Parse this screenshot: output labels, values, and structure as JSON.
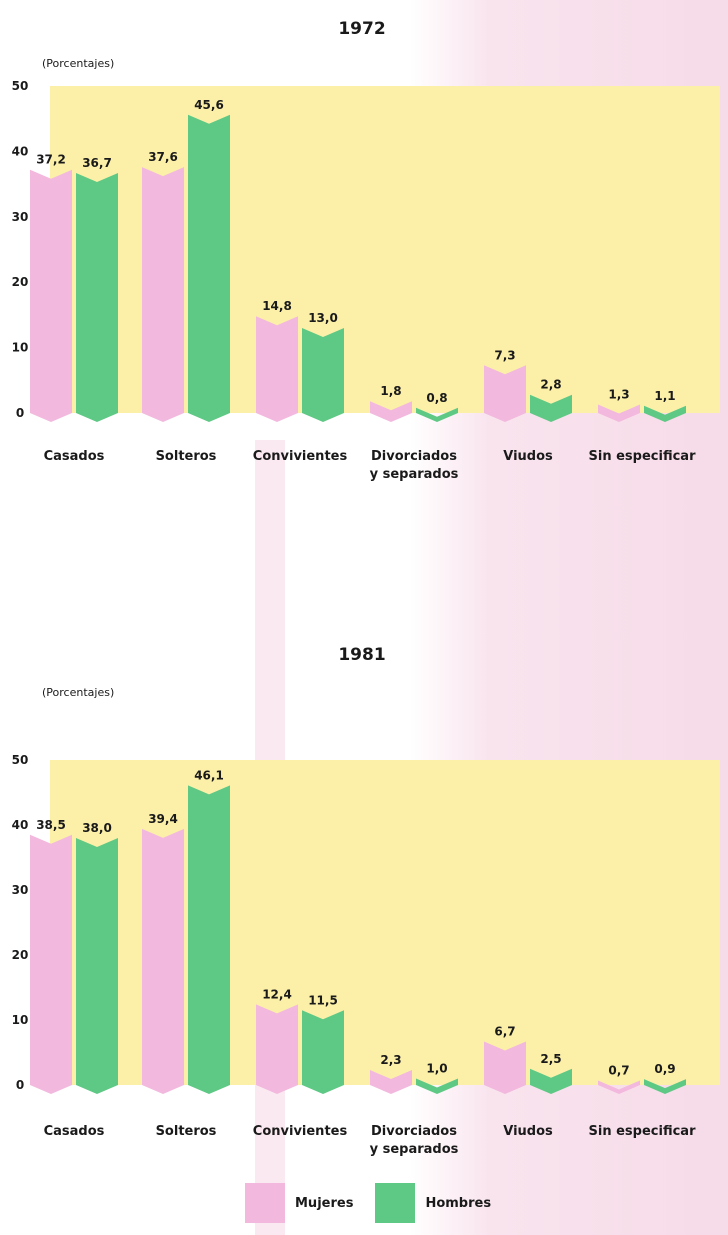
{
  "chart_data": [
    {
      "type": "bar",
      "title": "1972",
      "ylabel": "(Porcentajes)",
      "ylim": [
        0,
        50
      ],
      "yticks": [
        "0",
        "10",
        "20",
        "30",
        "40",
        "50"
      ],
      "categories": [
        "Casados",
        "Solteros",
        "Convivientes",
        "Divorciados|y separados",
        "Viudos",
        "Sin especificar"
      ],
      "series": [
        {
          "name": "Mujeres",
          "values": [
            37.2,
            37.6,
            14.8,
            1.8,
            7.3,
            1.3
          ],
          "labels": [
            "37,2",
            "37,6",
            "14,8",
            "1,8",
            "7,3",
            "1,3"
          ]
        },
        {
          "name": "Hombres",
          "values": [
            36.7,
            45.6,
            13.0,
            0.8,
            2.8,
            1.1
          ],
          "labels": [
            "36,7",
            "45,6",
            "13,0",
            "0,8",
            "2,8",
            "1,1"
          ]
        }
      ]
    },
    {
      "type": "bar",
      "title": "1981",
      "ylabel": "(Porcentajes)",
      "ylim": [
        0,
        50
      ],
      "yticks": [
        "0",
        "10",
        "20",
        "30",
        "40",
        "50"
      ],
      "categories": [
        "Casados",
        "Solteros",
        "Convivientes",
        "Divorciados|y separados",
        "Viudos",
        "Sin especificar"
      ],
      "series": [
        {
          "name": "Mujeres",
          "values": [
            38.5,
            39.4,
            12.4,
            2.3,
            6.7,
            0.7
          ],
          "labels": [
            "38,5",
            "39,4",
            "12,4",
            "2,3",
            "6,7",
            "0,7"
          ]
        },
        {
          "name": "Hombres",
          "values": [
            38.0,
            46.1,
            11.5,
            1.0,
            2.5,
            0.9
          ],
          "labels": [
            "38,0",
            "46,1",
            "11,5",
            "1,0",
            "2,5",
            "0,9"
          ]
        }
      ]
    }
  ],
  "legend": {
    "items": [
      {
        "label": "Mujeres",
        "color": "#f2b8dd"
      },
      {
        "label": "Hombres",
        "color": "#5ec885"
      }
    ]
  },
  "colors": {
    "panel": "#fcf0a8",
    "mujeres": "#f2b8dd",
    "hombres": "#5ec885",
    "text": "#1a1a1a"
  }
}
